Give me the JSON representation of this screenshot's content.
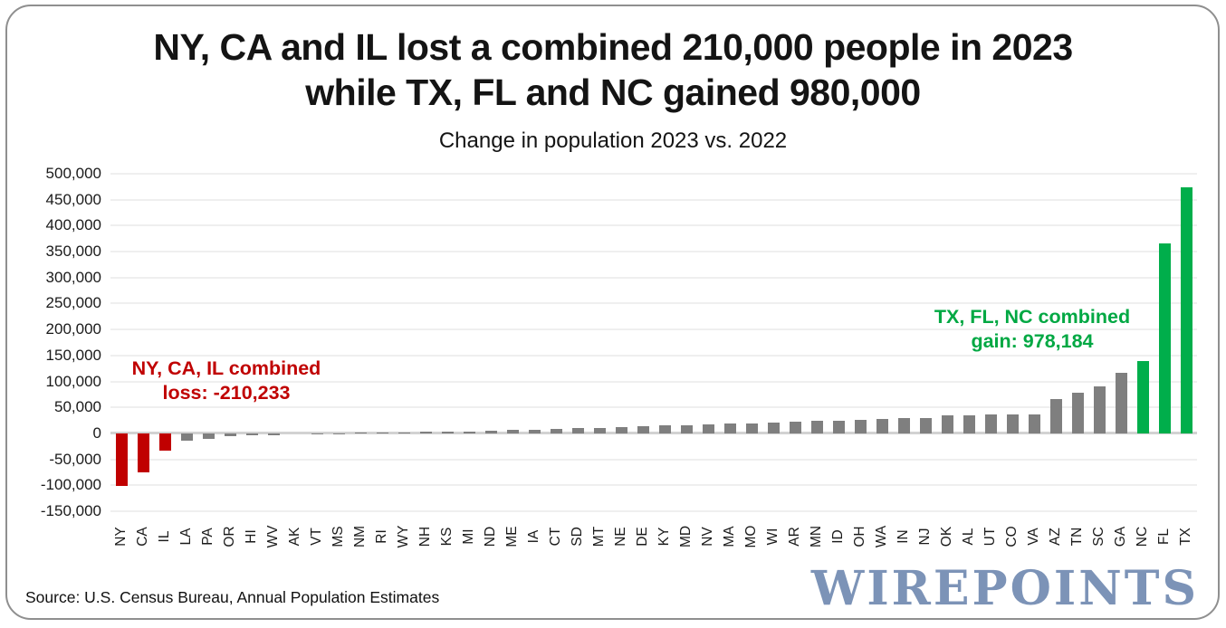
{
  "header": {
    "title_line1": "NY, CA and IL lost a combined 210,000 people in 2023",
    "title_line2": "while TX, FL and NC gained 980,000",
    "subtitle": "Change in population 2023 vs. 2022"
  },
  "chart_data": {
    "type": "bar",
    "title": "Change in population 2023 vs. 2022",
    "categories": [
      "NY",
      "CA",
      "IL",
      "LA",
      "PA",
      "OR",
      "HI",
      "WV",
      "AK",
      "VT",
      "MS",
      "NM",
      "RI",
      "WY",
      "NH",
      "KS",
      "MI",
      "ND",
      "ME",
      "IA",
      "CT",
      "SD",
      "MT",
      "NE",
      "DE",
      "KY",
      "MD",
      "NV",
      "MA",
      "MO",
      "WI",
      "AR",
      "MN",
      "ID",
      "OH",
      "WA",
      "IN",
      "NJ",
      "OK",
      "AL",
      "UT",
      "CO",
      "VA",
      "AZ",
      "TN",
      "SC",
      "GA",
      "NC",
      "FL",
      "TX"
    ],
    "values": [
      -101984,
      -75423,
      -32826,
      -14274,
      -10408,
      -6021,
      -4261,
      -3964,
      130,
      300,
      600,
      900,
      1500,
      2200,
      3300,
      3700,
      3980,
      5300,
      6100,
      7300,
      9200,
      9800,
      11000,
      12100,
      13400,
      15200,
      16300,
      17700,
      18700,
      19800,
      20500,
      21700,
      23600,
      24200,
      26200,
      28500,
      29900,
      30000,
      34600,
      34700,
      36500,
      36600,
      36700,
      65660,
      77513,
      90600,
      116077,
      139526,
      365205,
      473453
    ],
    "ylim": [
      -150000,
      500000
    ],
    "ytick_step": 50000,
    "grid": true,
    "legend": "none",
    "red_states": [
      "NY",
      "CA",
      "IL"
    ],
    "green_states": [
      "NC",
      "FL",
      "TX"
    ],
    "colors": {
      "bar_default": "#7F7F7F",
      "bar_loss": "#C00000",
      "bar_gain": "#00AE4B"
    }
  },
  "annotations": {
    "loss": {
      "line1": "NY, CA, IL combined",
      "line2": "loss: -210,233",
      "color": "#C00000"
    },
    "gain": {
      "line1": "TX, FL, NC combined",
      "line2": "gain: 978,184",
      "color": "#00A843"
    }
  },
  "footer": {
    "source": "Source: U.S. Census Bureau, Annual Population Estimates",
    "logo": "WIREPOINTS"
  }
}
